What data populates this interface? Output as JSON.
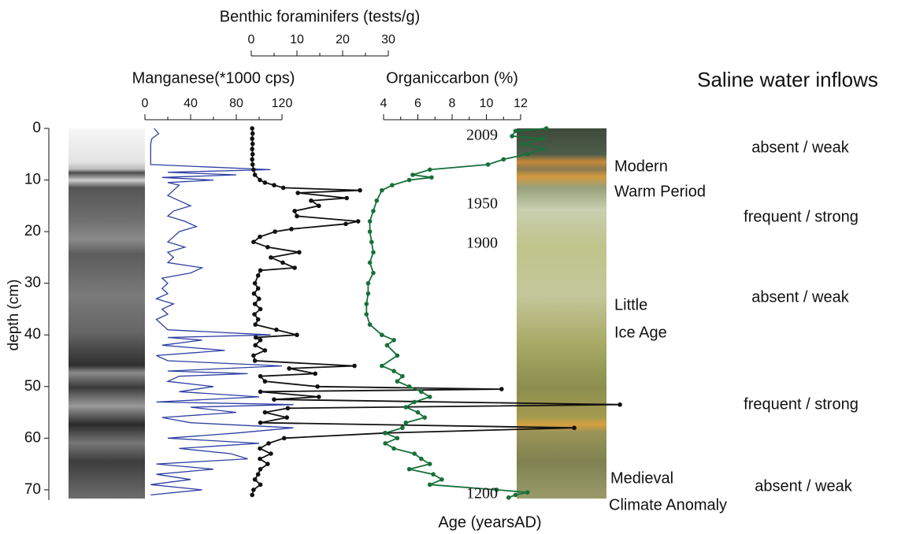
{
  "chart_data": {
    "type": "line",
    "y_label": "depth (cm)",
    "x_label": "Age (yearsAD)",
    "inflow_title": "Saline water inflows",
    "ylim": [
      0,
      72
    ],
    "y_inverted": true,
    "yticks": [
      0,
      10,
      20,
      30,
      40,
      50,
      60,
      70
    ],
    "series": [
      {
        "name": "Manganese(*1000 cps)",
        "color": "#2e3fa3",
        "markers": false,
        "xlim": [
          0,
          120
        ],
        "xticks": [
          0,
          40,
          80,
          120
        ],
        "xminorticks": [
          20,
          60,
          100
        ],
        "depth": [
          0,
          1,
          2,
          3,
          4,
          5,
          6,
          7,
          8,
          8.5,
          9,
          9.5,
          10,
          10.5,
          11,
          12,
          13,
          14,
          15,
          16,
          17,
          18,
          19,
          20,
          21,
          22,
          23,
          24,
          25,
          26,
          27,
          28,
          29,
          30,
          31,
          32,
          33,
          34,
          35,
          36,
          37,
          38,
          39,
          40,
          40.5,
          41,
          42,
          43,
          44,
          45,
          46,
          47,
          47.5,
          48,
          49,
          50,
          51,
          52,
          53,
          53.5,
          54,
          55,
          56,
          57,
          58,
          59,
          60,
          61,
          62,
          63,
          64,
          65,
          66,
          67,
          68,
          69,
          70,
          71
        ],
        "values": [
          8,
          12,
          6,
          5,
          5,
          5,
          5,
          5,
          110,
          20,
          80,
          15,
          60,
          20,
          30,
          25,
          20,
          30,
          40,
          25,
          20,
          35,
          45,
          30,
          25,
          20,
          35,
          20,
          25,
          20,
          50,
          40,
          15,
          20,
          15,
          20,
          10,
          25,
          15,
          20,
          10,
          15,
          20,
          110,
          20,
          50,
          15,
          70,
          10,
          20,
          120,
          20,
          90,
          30,
          20,
          60,
          30,
          100,
          10,
          130,
          40,
          80,
          15,
          40,
          130,
          80,
          20,
          100,
          30,
          75,
          90,
          10,
          60,
          10,
          40,
          5,
          50,
          5
        ]
      },
      {
        "name": "Benthic foraminifers (tests/g)",
        "color": "#111111",
        "markers": true,
        "xlim": [
          0,
          30
        ],
        "xticks": [
          0,
          10,
          20,
          30
        ],
        "xminorticks": [
          5,
          15,
          25
        ],
        "depth": [
          0,
          1,
          2,
          3,
          4,
          5,
          6,
          7,
          8,
          9,
          10,
          10.5,
          11,
          11.5,
          12,
          12.5,
          13.5,
          14,
          15,
          16,
          17,
          18,
          18.5,
          19.5,
          20,
          21,
          22,
          23,
          24,
          25,
          26,
          27,
          27.5,
          28.5,
          30,
          31,
          32,
          33,
          34,
          35,
          36,
          37,
          38,
          39,
          40,
          40.5,
          41,
          42,
          43,
          44,
          45,
          46,
          46.5,
          47.5,
          48,
          49,
          50,
          50.5,
          51,
          52,
          52.5,
          53.5,
          54.2,
          55,
          56,
          57,
          58,
          59,
          60,
          61,
          62,
          63,
          64,
          65,
          66,
          67,
          68,
          69,
          70,
          71
        ],
        "values": [
          0.2,
          0.3,
          0.2,
          0.3,
          0.2,
          0.3,
          0.2,
          0.3,
          0.5,
          0.8,
          1.9,
          3,
          5,
          7,
          23.8,
          10.2,
          20.9,
          13.1,
          14.8,
          9.5,
          10,
          23.4,
          20.7,
          8.8,
          5.2,
          1.9,
          0.5,
          3.6,
          10.5,
          4.3,
          6.9,
          9.5,
          2,
          1.5,
          0.8,
          1.5,
          0.6,
          1.7,
          0.8,
          2,
          0.7,
          1.5,
          0.9,
          5.5,
          10,
          1,
          2,
          0.9,
          3,
          0.5,
          0.8,
          22.6,
          8.3,
          14,
          2,
          3,
          14.5,
          54.8,
          2,
          14.8,
          5,
          80.7,
          8,
          3,
          7.8,
          2,
          70.7,
          29.3,
          7.2,
          3.8,
          1.9,
          4.3,
          1.9,
          3.6,
          2,
          1.5,
          0.8,
          2,
          0.5,
          0.2
        ]
      },
      {
        "name": "Organiccarbon (%)",
        "color": "#17703a",
        "markers": true,
        "xlim": [
          4,
          12
        ],
        "xticks": [
          4,
          6,
          8,
          10,
          12
        ],
        "xminorticks": [
          5,
          7,
          9,
          11
        ],
        "depth": [
          0,
          0.5,
          1.5,
          2,
          3,
          4,
          5,
          6,
          7,
          8,
          9,
          9.5,
          10,
          11,
          12,
          14,
          16,
          18,
          20,
          22,
          24,
          26,
          28,
          30,
          32,
          34,
          36,
          38,
          40,
          41,
          42,
          44,
          46,
          47,
          48,
          49,
          50,
          51,
          52,
          53,
          54,
          55,
          56,
          57,
          58,
          59,
          60,
          61,
          62,
          63,
          64,
          65,
          66,
          67,
          68,
          69,
          70,
          70.5,
          71,
          71.5
        ],
        "values": [
          13.5,
          11.7,
          11.5,
          13.3,
          12.1,
          13.3,
          12.4,
          11.0,
          10.1,
          6.7,
          5.7,
          6.8,
          5.5,
          4.5,
          3.9,
          3.6,
          3.4,
          3.2,
          3.2,
          3.3,
          3.4,
          3.2,
          3.4,
          3.1,
          3.1,
          3.0,
          3.0,
          3.2,
          3.9,
          4.6,
          4.2,
          4.8,
          3.9,
          4.6,
          5.1,
          4.8,
          5.5,
          6.2,
          6.7,
          5.8,
          5.3,
          6.0,
          6.4,
          5.3,
          5.1,
          4.1,
          4.8,
          4.1,
          4.6,
          5.8,
          6.2,
          6.7,
          5.5,
          6.9,
          7.4,
          6.7,
          10.6,
          12.4,
          11.7,
          11.3
        ]
      }
    ],
    "age_labels": [
      "2009",
      "1950",
      "1900",
      "1200"
    ],
    "period_labels": [
      "Modern",
      "Warm Period",
      "Little",
      "Ice Age",
      "Medieval",
      "Climate Anomaly"
    ],
    "inflow_labels": [
      "absent / weak",
      "frequent / strong",
      "absent / weak",
      "frequent / strong",
      "absent / weak"
    ]
  }
}
